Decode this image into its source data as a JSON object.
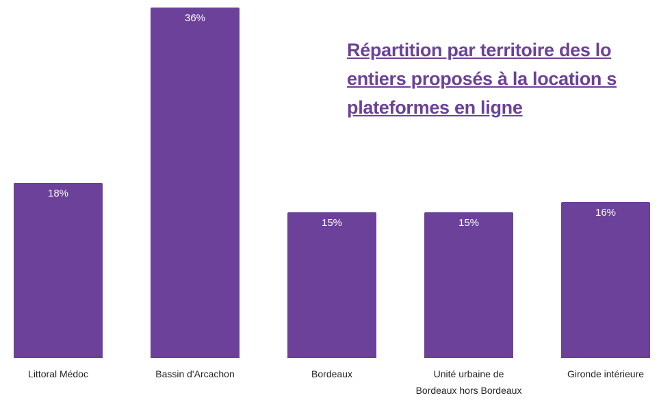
{
  "chart_data": {
    "type": "bar",
    "title": [
      "Répartition par territoire des lo",
      "entiers proposés à la location s",
      "plateformes en ligne"
    ],
    "categories": [
      "Littoral Médoc",
      "Bassin d'Arcachon",
      "Bordeaux",
      "Unité urbaine de Bordeaux hors Bordeaux",
      "Gironde intérieure"
    ],
    "values": [
      18,
      36,
      15,
      15,
      16
    ],
    "value_labels": [
      "18%",
      "36%",
      "15%",
      "15%",
      "16%"
    ],
    "color": "#6b4199",
    "ylim": [
      0,
      36
    ]
  }
}
